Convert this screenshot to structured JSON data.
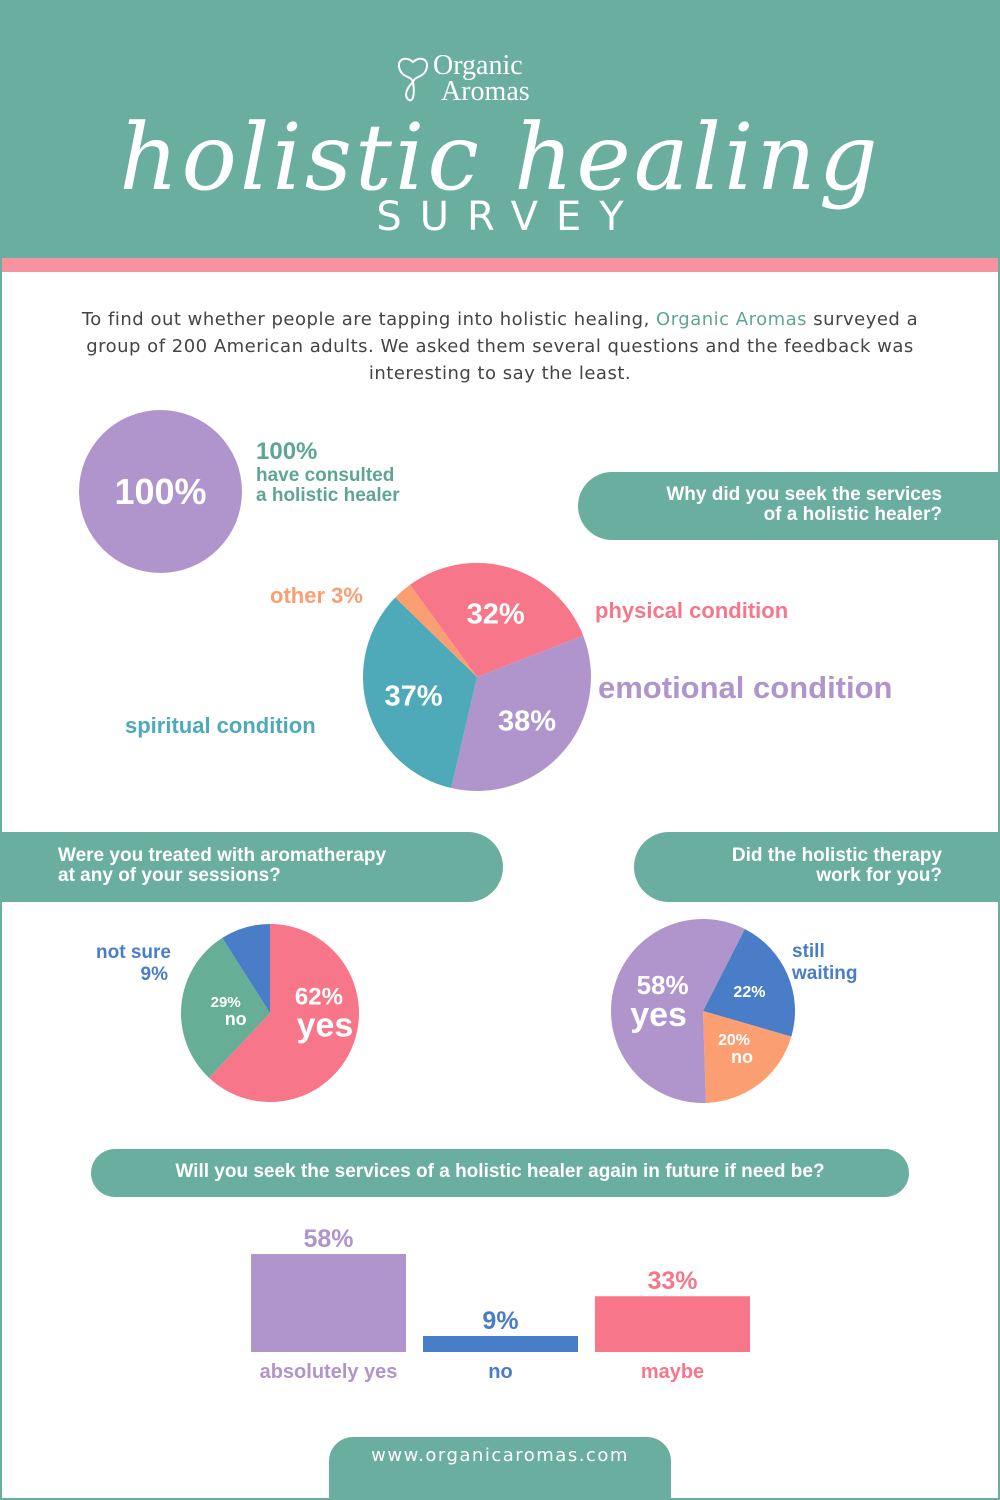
{
  "header": {
    "logo_line1": "Organic",
    "logo_line2": "Aromas",
    "title": "holistic healing",
    "subtitle": "SURVEY"
  },
  "intro": {
    "before": "To find out whether people are tapping into holistic healing, ",
    "brand": "Organic Aromas",
    "after": " surveyed a group of 200 American adults. We asked them several questions and the feedback was interesting to say the least."
  },
  "consulted": {
    "circle_label": "100%",
    "pct": "100%",
    "line1": "have consulted",
    "line2": "a holistic healer"
  },
  "q1": {
    "line1": "Why did you seek the services",
    "line2": "of a holistic healer?"
  },
  "q2": {
    "line1": "Were you treated with aromatherapy",
    "line2": "at any of your sessions?"
  },
  "q3": {
    "line1": "Did the holistic therapy",
    "line2": "work for you?"
  },
  "q4": {
    "text": "Will you seek the services of a holistic healer again in future if need be?"
  },
  "colors": {
    "teal": "#6aaea0",
    "pink": "#f7768a",
    "purple": "#b094cc",
    "blue": "#4a7dc8",
    "cyan": "#4eaab8",
    "orange": "#fb9e72",
    "green": "#67ae96"
  },
  "chart_data": [
    {
      "type": "pie",
      "slices": [
        {
          "label": "physical condition",
          "value": 32,
          "value_label": "32%",
          "color": "#f7768a"
        },
        {
          "label": "emotional condition",
          "value": 38,
          "value_label": "38%",
          "color": "#b094cc"
        },
        {
          "label": "spiritual condition",
          "value": 37,
          "value_label": "37%",
          "color": "#4eaab8"
        },
        {
          "label": "other",
          "value": 3,
          "value_label": "other 3%",
          "color": "#fb9e72"
        }
      ]
    },
    {
      "type": "pie",
      "slices": [
        {
          "label": "yes",
          "value": 62,
          "value_label": "62%",
          "color": "#f7768a"
        },
        {
          "label": "no",
          "value": 29,
          "value_label": "29%",
          "color": "#67ae96"
        },
        {
          "label": "not sure",
          "value": 9,
          "value_label": "9%",
          "color": "#4a7dc8"
        }
      ]
    },
    {
      "type": "pie",
      "slices": [
        {
          "label": "still waiting",
          "value": 22,
          "value_label": "22%",
          "color": "#4a7dc8"
        },
        {
          "label": "no",
          "value": 20,
          "value_label": "20%",
          "color": "#fb9e72"
        },
        {
          "label": "yes",
          "value": 58,
          "value_label": "58%",
          "color": "#b094cc"
        }
      ]
    },
    {
      "type": "bar",
      "categories": [
        "absolutely yes",
        "no",
        "maybe"
      ],
      "values": [
        58,
        9,
        33
      ],
      "value_labels": [
        "58%",
        "9%",
        "33%"
      ],
      "colors": [
        "#b094cc",
        "#4a7dc8",
        "#f7768a"
      ]
    }
  ],
  "footer": {
    "url": "www.organicaromas.com"
  }
}
